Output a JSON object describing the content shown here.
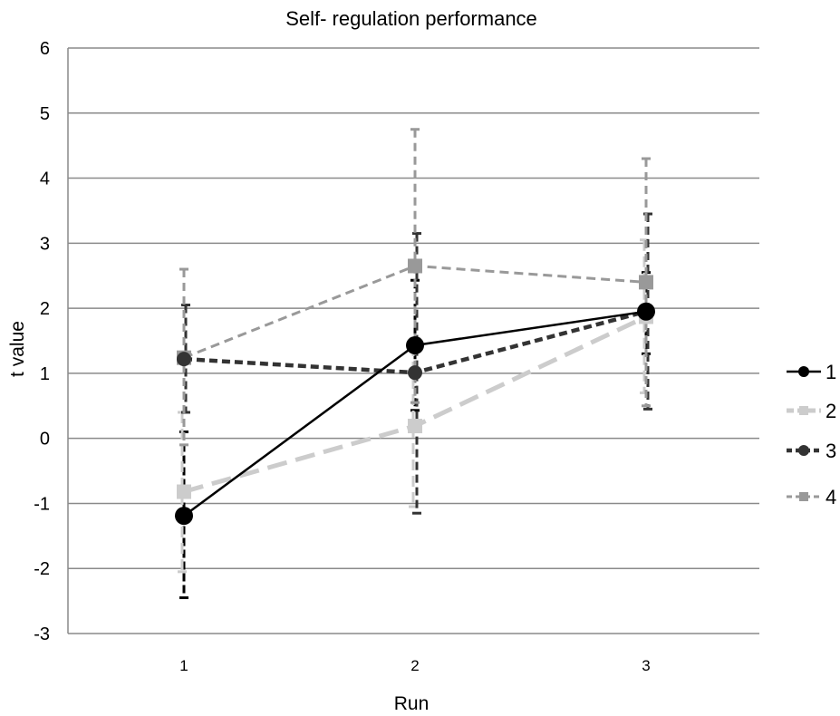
{
  "chart_data": {
    "type": "line",
    "title": "Self- regulation performance",
    "xlabel": "Run",
    "ylabel": "t value",
    "categories": [
      "1",
      "2",
      "3"
    ],
    "ylim": [
      -3,
      6
    ],
    "yticks": [
      "6",
      "5",
      "4",
      "3",
      "2",
      "1",
      "0",
      "-1",
      "-2",
      "-3"
    ],
    "grid": "horizontal",
    "legend_position": "right",
    "series": [
      {
        "name": "1",
        "values": [
          -1.19,
          1.43,
          1.95
        ],
        "error_low": [
          -2.45,
          0.43,
          1.3
        ],
        "error_high": [
          0.1,
          2.43,
          2.55
        ],
        "color": "#000000",
        "marker": "circle",
        "line": "solid"
      },
      {
        "name": "2",
        "values": [
          -0.82,
          0.19,
          1.87
        ],
        "error_low": [
          -2.05,
          -1.05,
          0.7
        ],
        "error_high": [
          0.4,
          1.43,
          3.05
        ],
        "color": "#cccccc",
        "marker": "square",
        "line": "dashed"
      },
      {
        "name": "3",
        "values": [
          1.22,
          1.01,
          1.95
        ],
        "error_low": [
          0.4,
          -1.15,
          0.45
        ],
        "error_high": [
          2.05,
          3.15,
          3.45
        ],
        "color": "#333333",
        "marker": "circle",
        "line": "dashed"
      },
      {
        "name": "4",
        "values": [
          1.24,
          2.65,
          2.4
        ],
        "error_low": [
          -0.1,
          0.55,
          0.5
        ],
        "error_high": [
          2.6,
          4.75,
          4.3
        ],
        "color": "#999999",
        "marker": "square",
        "line": "dashed"
      }
    ]
  }
}
